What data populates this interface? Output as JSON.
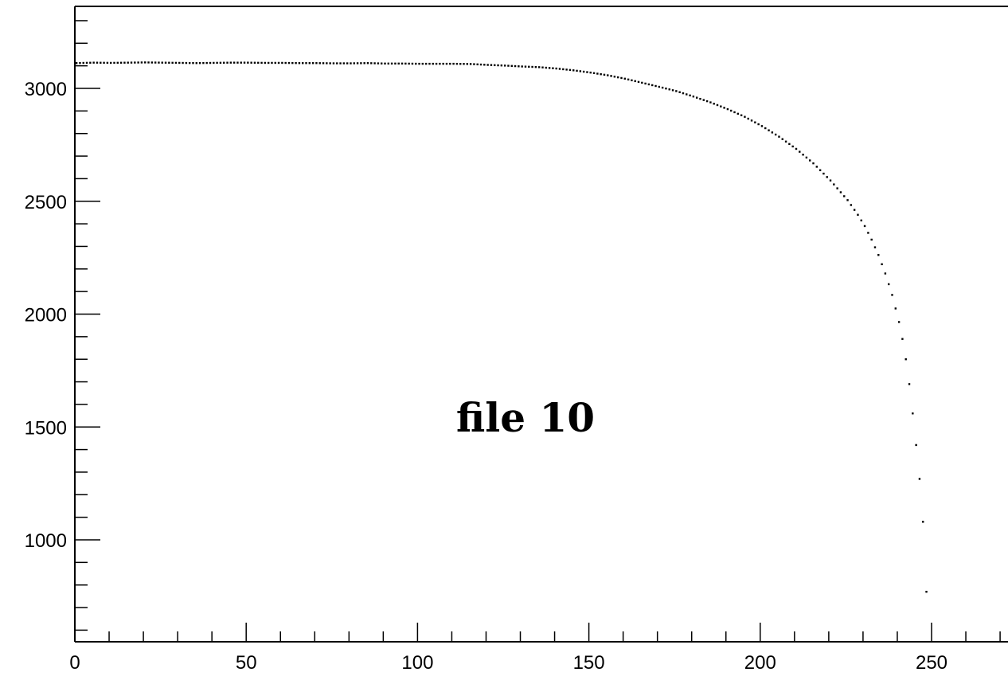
{
  "chart_data": {
    "type": "scatter",
    "title": "",
    "xlabel": "",
    "ylabel": "",
    "xlim": [
      0,
      270
    ],
    "ylim": [
      560,
      3380
    ],
    "x_ticks": [
      0,
      50,
      100,
      150,
      200,
      250
    ],
    "y_ticks": [
      1000,
      1500,
      2000,
      2500,
      3000
    ],
    "grid": false,
    "annotation": "file 10",
    "marker_color": "#000000",
    "series": [
      {
        "points": [
          [
            0,
            3112
          ],
          [
            5,
            3114
          ],
          [
            10,
            3113
          ],
          [
            15,
            3114
          ],
          [
            20,
            3115
          ],
          [
            25,
            3114
          ],
          [
            30,
            3113
          ],
          [
            35,
            3112
          ],
          [
            40,
            3113
          ],
          [
            45,
            3114
          ],
          [
            50,
            3114
          ],
          [
            55,
            3113
          ],
          [
            60,
            3113
          ],
          [
            65,
            3112
          ],
          [
            70,
            3112
          ],
          [
            75,
            3111
          ],
          [
            80,
            3111
          ],
          [
            85,
            3112
          ],
          [
            90,
            3110
          ],
          [
            95,
            3110
          ],
          [
            100,
            3109
          ],
          [
            105,
            3109
          ],
          [
            110,
            3109
          ],
          [
            115,
            3108
          ],
          [
            120,
            3104
          ],
          [
            125,
            3101
          ],
          [
            130,
            3097
          ],
          [
            135,
            3094
          ],
          [
            140,
            3088
          ],
          [
            145,
            3080
          ],
          [
            150,
            3070
          ],
          [
            155,
            3058
          ],
          [
            160,
            3043
          ],
          [
            165,
            3025
          ],
          [
            170,
            3007
          ],
          [
            175,
            2988
          ],
          [
            180,
            2964
          ],
          [
            185,
            2938
          ],
          [
            190,
            2908
          ],
          [
            195,
            2874
          ],
          [
            200,
            2833
          ],
          [
            205,
            2786
          ],
          [
            210,
            2732
          ],
          [
            215,
            2668
          ],
          [
            220,
            2592
          ],
          [
            225,
            2505
          ],
          [
            228,
            2440
          ],
          [
            230,
            2390
          ],
          [
            232,
            2330
          ],
          [
            234,
            2262
          ],
          [
            236,
            2180
          ],
          [
            238,
            2085
          ],
          [
            240,
            1965
          ],
          [
            241,
            1890
          ],
          [
            242,
            1800
          ],
          [
            243,
            1690
          ],
          [
            244,
            1560
          ],
          [
            245,
            1420
          ],
          [
            246,
            1270
          ],
          [
            247,
            1080
          ],
          [
            248,
            770
          ]
        ]
      }
    ]
  }
}
